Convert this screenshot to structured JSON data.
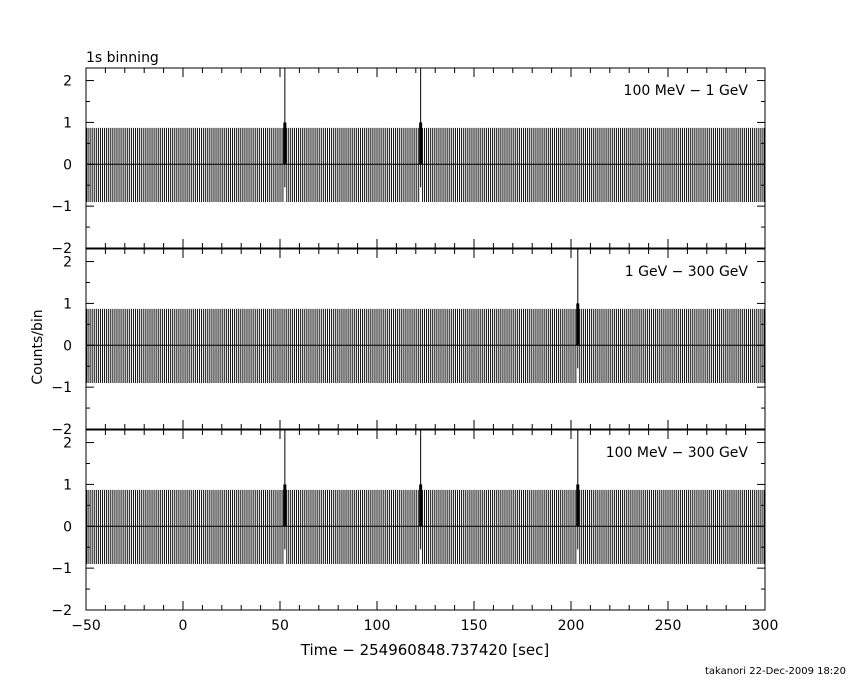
{
  "chart_data": [
    {
      "type": "bar",
      "title": "1s binning",
      "label": "100 MeV − 1 GeV",
      "xlim": [
        -50,
        300
      ],
      "ylim": [
        -2,
        2.3
      ],
      "yticks": [
        -2,
        -1,
        0,
        1,
        2
      ],
      "bin_width_sec": 1,
      "baseline_error_range": [
        -0.9,
        0.87
      ],
      "events": [
        {
          "time": 52,
          "counts": 1
        },
        {
          "time": 122,
          "counts": 1
        }
      ]
    },
    {
      "type": "bar",
      "label": "1 GeV − 300 GeV",
      "xlim": [
        -50,
        300
      ],
      "ylim": [
        -2,
        2.3
      ],
      "yticks": [
        -2,
        -1,
        0,
        1,
        2
      ],
      "bin_width_sec": 1,
      "baseline_error_range": [
        -0.9,
        0.87
      ],
      "events": [
        {
          "time": 203,
          "counts": 1
        }
      ]
    },
    {
      "type": "bar",
      "label": "100 MeV − 300 GeV",
      "xlim": [
        -50,
        300
      ],
      "ylim": [
        -2,
        2.3
      ],
      "yticks": [
        -2,
        -1,
        0,
        1,
        2
      ],
      "xticks": [
        -50,
        0,
        50,
        100,
        150,
        200,
        250,
        300
      ],
      "bin_width_sec": 1,
      "baseline_error_range": [
        -0.9,
        0.87
      ],
      "events": [
        {
          "time": 52,
          "counts": 1
        },
        {
          "time": 122,
          "counts": 1
        },
        {
          "time": 203,
          "counts": 1
        }
      ]
    }
  ],
  "ylabel": "Counts/bin",
  "xlabel": "Time − 254960848.737420 [sec]",
  "footer": "takanori 22-Dec-2009 18:20"
}
